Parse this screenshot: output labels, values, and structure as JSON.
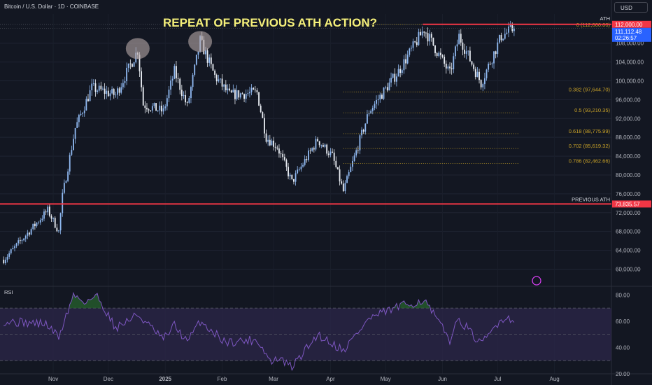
{
  "header": {
    "symbol_line": "Bitcoin / U.S. Dollar · 1D · COINBASE",
    "currency": "USD"
  },
  "annotation": {
    "title": "REPEAT OF PREVIOUS ATH ACTION?",
    "ath_label": "ATH",
    "previous_ath_label": "PREVIOUS ATH"
  },
  "colors": {
    "background": "#131722",
    "candle_up": "#8fb8f0",
    "candle_down": "#e8ecf2",
    "resistance_line": "#f23645",
    "fib_level": "#c9a227",
    "title_text": "#f5f07a",
    "rsi_line": "#7e57c2",
    "rsi_band": "#2a2547",
    "rsi_overbought_fill": "#2e7d32"
  },
  "chart_data": {
    "type": "candlestick",
    "price_axis": {
      "ticks": [
        "60,000.00",
        "64,000.00",
        "68,000.00",
        "72,000.00",
        "76,000.00",
        "80,000.00",
        "84,000.00",
        "88,000.00",
        "92,000.00",
        "96,000.00",
        "100,000.00",
        "104,000.00",
        "108,000.00"
      ],
      "range": [
        56500,
        114200
      ]
    },
    "price_labels": {
      "ath": "112,000.00",
      "current_price": "111,112.48",
      "countdown": "02:26:57",
      "previous_ath": "73,835.57"
    },
    "x_axis": {
      "labels": [
        "Nov",
        "Dec",
        "2025",
        "Feb",
        "Mar",
        "Apr",
        "May",
        "Jun",
        "Jul",
        "Aug"
      ]
    },
    "horizontal_levels": [
      {
        "label": "ATH",
        "value": 112000
      },
      {
        "label": "PREVIOUS ATH",
        "value": 73835.57
      }
    ],
    "fib_levels": [
      {
        "label": "0 (112,000.00)",
        "value": 112000
      },
      {
        "label": "0.382 (97,644.70)",
        "value": 97644.7
      },
      {
        "label": "0.5 (93,210.35)",
        "value": 93210.35
      },
      {
        "label": "0.618 (88,775.99)",
        "value": 88775.99
      },
      {
        "label": "0.702 (85,619.32)",
        "value": 85619.32
      },
      {
        "label": "0.786 (82,462.66)",
        "value": 82462.66
      }
    ],
    "path_anchors": [
      {
        "date": "2024-10-05",
        "close": 62000
      },
      {
        "date": "2024-10-20",
        "close": 68500
      },
      {
        "date": "2024-10-29",
        "close": 72500
      },
      {
        "date": "2024-11-04",
        "close": 68000
      },
      {
        "date": "2024-11-06",
        "close": 75500
      },
      {
        "date": "2024-11-13",
        "close": 90000
      },
      {
        "date": "2024-11-22",
        "close": 98500
      },
      {
        "date": "2024-12-05",
        "close": 97000
      },
      {
        "date": "2024-12-17",
        "close": 106500
      },
      {
        "date": "2024-12-20",
        "close": 95000
      },
      {
        "date": "2024-12-31",
        "close": 93500
      },
      {
        "date": "2025-01-06",
        "close": 102000
      },
      {
        "date": "2025-01-13",
        "close": 94500
      },
      {
        "date": "2025-01-20",
        "close": 108500
      },
      {
        "date": "2025-01-28",
        "close": 101000
      },
      {
        "date": "2025-02-05",
        "close": 97000
      },
      {
        "date": "2025-02-20",
        "close": 97500
      },
      {
        "date": "2025-02-25",
        "close": 88000
      },
      {
        "date": "2025-03-03",
        "close": 86000
      },
      {
        "date": "2025-03-11",
        "close": 78500
      },
      {
        "date": "2025-03-25",
        "close": 87500
      },
      {
        "date": "2025-04-02",
        "close": 84000
      },
      {
        "date": "2025-04-08",
        "close": 76500
      },
      {
        "date": "2025-04-22",
        "close": 93500
      },
      {
        "date": "2025-05-08",
        "close": 102000
      },
      {
        "date": "2025-05-22",
        "close": 111000
      },
      {
        "date": "2025-06-05",
        "close": 101500
      },
      {
        "date": "2025-06-10",
        "close": 109500
      },
      {
        "date": "2025-06-22",
        "close": 99500
      },
      {
        "date": "2025-07-03",
        "close": 109500
      },
      {
        "date": "2025-07-10",
        "close": 111112
      }
    ],
    "highlighted_peaks": [
      {
        "date": "2024-12-17",
        "price": 107000
      },
      {
        "date": "2025-01-20",
        "price": 108500
      }
    ],
    "rsi": {
      "label": "RSI",
      "ticks": [
        "20.00",
        "40.00",
        "60.00",
        "80.00"
      ],
      "range": [
        20,
        85
      ],
      "overbought": 70,
      "oversold": 30,
      "anchors": [
        {
          "date": "2024-10-05",
          "value": 60
        },
        {
          "date": "2024-10-28",
          "value": 58
        },
        {
          "date": "2024-11-04",
          "value": 48
        },
        {
          "date": "2024-11-12",
          "value": 80
        },
        {
          "date": "2024-11-18",
          "value": 75
        },
        {
          "date": "2024-11-25",
          "value": 79
        },
        {
          "date": "2024-12-05",
          "value": 55
        },
        {
          "date": "2024-12-17",
          "value": 65
        },
        {
          "date": "2024-12-31",
          "value": 46
        },
        {
          "date": "2025-01-06",
          "value": 57
        },
        {
          "date": "2025-01-13",
          "value": 44
        },
        {
          "date": "2025-01-20",
          "value": 60
        },
        {
          "date": "2025-02-03",
          "value": 44
        },
        {
          "date": "2025-02-20",
          "value": 46
        },
        {
          "date": "2025-02-28",
          "value": 28
        },
        {
          "date": "2025-03-03",
          "value": 32
        },
        {
          "date": "2025-03-11",
          "value": 25
        },
        {
          "date": "2025-03-25",
          "value": 50
        },
        {
          "date": "2025-04-08",
          "value": 38
        },
        {
          "date": "2025-04-22",
          "value": 62
        },
        {
          "date": "2025-05-08",
          "value": 71
        },
        {
          "date": "2025-05-22",
          "value": 76
        },
        {
          "date": "2025-06-05",
          "value": 46
        },
        {
          "date": "2025-06-10",
          "value": 62
        },
        {
          "date": "2025-06-22",
          "value": 42
        },
        {
          "date": "2025-07-03",
          "value": 62
        },
        {
          "date": "2025-07-10",
          "value": 62
        }
      ]
    }
  }
}
